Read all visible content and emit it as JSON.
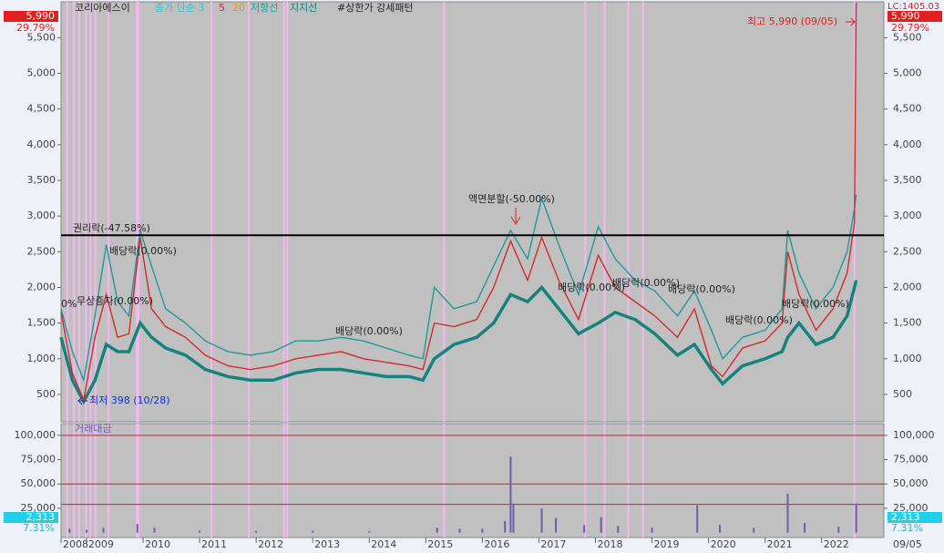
{
  "header": {
    "title": "코리아에스이",
    "legend": [
      "종가 단순 3",
      "5",
      "20",
      "저항선",
      "지지선",
      "#상한가 강세패턴"
    ],
    "last_price": "5,990",
    "last_change": "29.79%",
    "right_top": "LC:1405.03"
  },
  "chart_data": [
    {
      "type": "line",
      "title": "코리아에스이",
      "x": [
        2008.55,
        2008.75,
        2008.95,
        2009.15,
        2009.35,
        2009.55,
        2009.75,
        2009.95,
        2010.15,
        2010.4,
        2010.75,
        2011.1,
        2011.5,
        2011.9,
        2012.3,
        2012.7,
        2013.1,
        2013.5,
        2013.9,
        2014.3,
        2014.7,
        2014.95,
        2015.15,
        2015.5,
        2015.9,
        2016.2,
        2016.5,
        2016.8,
        2017.05,
        2017.35,
        2017.7,
        2018.05,
        2018.35,
        2018.7,
        2019.05,
        2019.45,
        2019.75,
        2020.05,
        2020.25,
        2020.6,
        2021.0,
        2021.3,
        2021.4,
        2021.6,
        2021.9,
        2022.2,
        2022.45,
        2022.58,
        2022.61
      ],
      "series": [
        {
          "name": "저항선",
          "color": "#1f9a96",
          "values": [
            1700,
            1100,
            700,
            1600,
            2600,
            1800,
            1600,
            2800,
            2300,
            1700,
            1500,
            1250,
            1100,
            1050,
            1100,
            1250,
            1250,
            1300,
            1250,
            1150,
            1050,
            1000,
            2000,
            1700,
            1800,
            2300,
            2800,
            2400,
            3250,
            2600,
            1900,
            2850,
            2400,
            2100,
            1950,
            1600,
            1950,
            1400,
            1000,
            1300,
            1400,
            1700,
            2800,
            2200,
            1700,
            2000,
            2500,
            3100,
            3300
          ]
        },
        {
          "name": "지지선",
          "color": "#16827d",
          "values": [
            1300,
            700,
            400,
            700,
            1200,
            1100,
            1100,
            1500,
            1300,
            1150,
            1050,
            850,
            750,
            700,
            700,
            800,
            850,
            850,
            800,
            750,
            750,
            700,
            1000,
            1200,
            1300,
            1500,
            1900,
            1800,
            2000,
            1700,
            1350,
            1500,
            1650,
            1550,
            1350,
            1050,
            1200,
            850,
            650,
            900,
            1000,
            1100,
            1300,
            1500,
            1200,
            1300,
            1600,
            2000,
            2100
          ]
        },
        {
          "name": "종가 단순 3",
          "color": "#d42a2a",
          "values": [
            1650,
            800,
            420,
            1300,
            1900,
            1300,
            1350,
            2700,
            1700,
            1450,
            1300,
            1050,
            900,
            850,
            900,
            1000,
            1050,
            1100,
            1000,
            950,
            900,
            850,
            1500,
            1450,
            1550,
            2000,
            2650,
            2100,
            2700,
            2100,
            1550,
            2450,
            2000,
            1800,
            1600,
            1300,
            1700,
            900,
            750,
            1150,
            1250,
            1500,
            2500,
            1900,
            1400,
            1700,
            2200,
            2900,
            5990
          ]
        }
      ],
      "xlim": [
        2008.55,
        2023.1
      ],
      "xticks": [
        {
          "value": 2008.55,
          "label": "2008"
        },
        2009,
        2010,
        2011,
        2012,
        2013,
        2014,
        2015,
        2016,
        2017,
        2018,
        2019,
        2020,
        2021,
        2022
      ],
      "x_end_label": "09/05",
      "ylim": [
        116,
        6003
      ],
      "yticks": [
        500,
        {
          "value": 1000,
          "label": "1,000"
        },
        {
          "value": 1500,
          "label": "1,500"
        },
        {
          "value": 2000,
          "label": "2,000"
        },
        {
          "value": 2500,
          "label": "2,500"
        },
        {
          "value": 3000,
          "label": "3,000"
        },
        {
          "value": 3500,
          "label": "3,500"
        },
        {
          "value": 4000,
          "label": "4,000"
        },
        {
          "value": 4500,
          "label": "4,500"
        },
        {
          "value": 5000,
          "label": "5,000"
        },
        {
          "value": 5500,
          "label": "5,500"
        }
      ],
      "hline": 2730,
      "highlight_x": [
        2008.66,
        2008.78,
        2008.87,
        2008.99,
        2009.07,
        2009.16,
        2009.39,
        2009.89,
        2009.92,
        2011.21,
        2011.87,
        2012.49,
        2012.55,
        2015.32,
        2017.82,
        2018.16,
        2018.58,
        2018.84,
        2022.58
      ],
      "annotations": [
        "0%",
        "권리락(-47.58%)",
        "배당락(0.00%)",
        "무상증자(0.00%)",
        "배당락(0.00%)",
        "액면분할(-50.00%)",
        "배당락(0.00%)",
        "배당락(0.00%)",
        "배당락(0.00%)",
        "배당락(0.00%)",
        "배당락(0.00%)",
        "최고 5,990 (09/05)",
        "최저 398 (10/28)"
      ]
    },
    {
      "type": "bar",
      "title": "거래대금",
      "color": "#6a5fa8",
      "x": [
        2008.7,
        2009.0,
        2009.3,
        2009.9,
        2010.2,
        2011.0,
        2012.0,
        2013.0,
        2014.0,
        2015.2,
        2015.6,
        2016.0,
        2016.4,
        2016.5,
        2016.55,
        2017.05,
        2017.3,
        2017.8,
        2018.1,
        2018.4,
        2019.0,
        2019.8,
        2020.2,
        2020.8,
        2021.4,
        2021.7,
        2022.3,
        2022.61
      ],
      "values": [
        4000,
        3000,
        5000,
        9000,
        5000,
        2000,
        2000,
        2000,
        1500,
        5000,
        4000,
        4000,
        12000,
        78000,
        30000,
        25000,
        15000,
        8000,
        16000,
        7000,
        5000,
        28000,
        8000,
        5000,
        40000,
        10000,
        6000,
        30000
      ],
      "ylim": [
        -5000,
        112000
      ],
      "yticks": [
        {
          "value": 25000,
          "label": "25,000"
        },
        {
          "value": 50000,
          "label": "50,000"
        },
        {
          "value": 75000,
          "label": "75,000"
        },
        {
          "value": 100000,
          "label": "100,000"
        }
      ],
      "ref_lines": [
        29000,
        50000,
        100000
      ],
      "last_value": "2,313",
      "last_change": "7.31%"
    }
  ]
}
